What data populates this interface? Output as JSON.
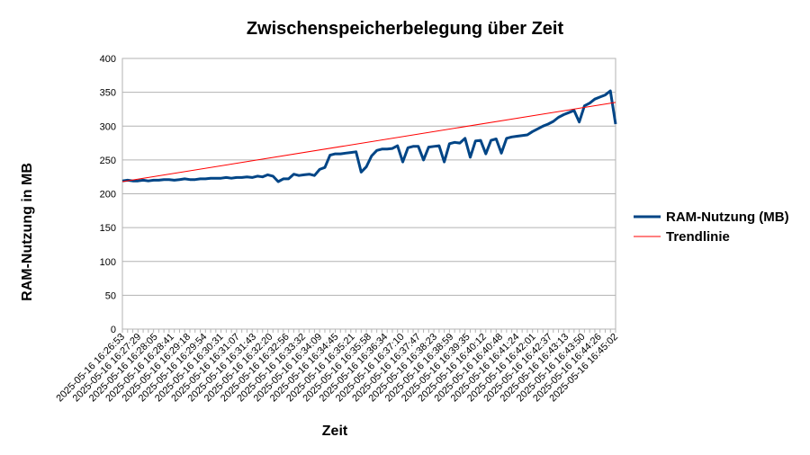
{
  "chart_data": {
    "type": "line",
    "title": "Zwischenspeicherbelegung über Zeit",
    "xlabel": "Zeit",
    "ylabel": "RAM-Nutzung in MB",
    "ylim": [
      0,
      400
    ],
    "yticks": [
      0,
      50,
      100,
      150,
      200,
      250,
      300,
      350,
      400
    ],
    "grid": "horizontal",
    "legend_position": "right",
    "x_tick_labels": [
      "2025-05-16 16:26:53",
      "2025-05-16 16:27:29",
      "2025-05-16 16:28:05",
      "2025-05-16 16:28:41",
      "2025-05-16 16:29:18",
      "2025-05-16 16:29:54",
      "2025-05-16 16:30:31",
      "2025-05-16 16:31:07",
      "2025-05-16 16:31:43",
      "2025-05-16 16:32:20",
      "2025-05-16 16:32:56",
      "2025-05-16 16:33:32",
      "2025-05-16 16:34:09",
      "2025-05-16 16:34:45",
      "2025-05-16 16:35:21",
      "2025-05-16 16:35:58",
      "2025-05-16 16:36:34",
      "2025-05-16 16:37:10",
      "2025-05-16 16:37:47",
      "2025-05-16 16:38:23",
      "2025-05-16 16:38:59",
      "2025-05-16 16:39:35",
      "2025-05-16 16:40:12",
      "2025-05-16 16:40:48",
      "2025-05-16 16:41:24",
      "2025-05-16 16:42:01",
      "2025-05-16 16:42:37",
      "2025-05-16 16:43:13",
      "2025-05-16 16:43:50",
      "2025-05-16 16:44:26",
      "2025-05-16 16:45:02"
    ],
    "series": [
      {
        "name": "RAM-Nutzung (MB)",
        "color": "#004586",
        "values": [
          219,
          220,
          219,
          219,
          220,
          219,
          220,
          220,
          221,
          221,
          220,
          221,
          222,
          221,
          221,
          222,
          222,
          223,
          223,
          223,
          224,
          223,
          224,
          224,
          225,
          224,
          226,
          225,
          228,
          226,
          218,
          222,
          222,
          229,
          227,
          228,
          229,
          227,
          236,
          239,
          257,
          259,
          259,
          260,
          261,
          262,
          232,
          240,
          256,
          264,
          266,
          266,
          267,
          271,
          247,
          268,
          270,
          270,
          250,
          269,
          270,
          271,
          247,
          274,
          276,
          275,
          282,
          254,
          278,
          279,
          259,
          279,
          281,
          260,
          282,
          284,
          285,
          286,
          287,
          292,
          296,
          300,
          303,
          307,
          313,
          317,
          320,
          323,
          306,
          330,
          334,
          340,
          343,
          346,
          352,
          303
        ]
      },
      {
        "name": "Trendlinie",
        "color": "#ff0000",
        "values": [
          218,
          335
        ]
      }
    ]
  }
}
